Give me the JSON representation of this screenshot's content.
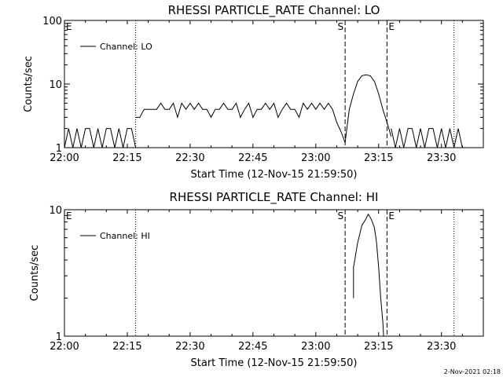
{
  "footer": {
    "timestamp": "2-Nov-2021 02:18"
  },
  "chart_data": [
    {
      "type": "line",
      "title": "RHESSI PARTICLE_RATE Channel: LO",
      "xlabel": "Start Time (12-Nov-15 21:59:50)",
      "ylabel": "Counts/sec",
      "yscale": "log",
      "xlim": [
        "22:00",
        "23:40"
      ],
      "ylim": [
        1,
        100
      ],
      "x_ticks": [
        "22:00",
        "22:15",
        "22:30",
        "22:45",
        "23:00",
        "23:15",
        "23:30"
      ],
      "y_ticks": [
        "1",
        "10",
        "100"
      ],
      "legend": {
        "entries": [
          "Channel: LO"
        ],
        "placement": "top-left"
      },
      "markers": [
        {
          "label": "E",
          "time": "22:00",
          "style": "none"
        },
        {
          "label": "",
          "time": "22:17",
          "style": "dotted"
        },
        {
          "label": "S",
          "time": "23:07",
          "style": "dashed"
        },
        {
          "label": "E",
          "time": "23:17",
          "style": "dashed"
        },
        {
          "label": "",
          "time": "23:33",
          "style": "dotted"
        }
      ],
      "series": [
        {
          "name": "Channel: LO",
          "segments": [
            [
              [
                "22:00",
                1
              ],
              [
                "22:01",
                2
              ],
              [
                "22:02",
                1
              ],
              [
                "22:03",
                2
              ],
              [
                "22:04",
                1
              ],
              [
                "22:05",
                2
              ],
              [
                "22:06",
                2
              ],
              [
                "22:07",
                1
              ],
              [
                "22:08",
                2
              ],
              [
                "22:09",
                1
              ],
              [
                "22:10",
                2
              ],
              [
                "22:11",
                2
              ],
              [
                "22:12",
                1
              ],
              [
                "22:13",
                2
              ],
              [
                "22:14",
                1
              ],
              [
                "22:15",
                2
              ],
              [
                "22:16",
                2
              ],
              [
                "22:17",
                1
              ]
            ],
            [
              [
                "22:17",
                3
              ],
              [
                "22:18",
                3
              ],
              [
                "22:19",
                4
              ],
              [
                "22:20",
                4
              ],
              [
                "22:21",
                4
              ],
              [
                "22:22",
                4
              ],
              [
                "22:23",
                5
              ],
              [
                "22:24",
                4
              ],
              [
                "22:25",
                4
              ],
              [
                "22:26",
                5
              ],
              [
                "22:27",
                3
              ],
              [
                "22:28",
                5
              ],
              [
                "22:29",
                4
              ],
              [
                "22:30",
                5
              ],
              [
                "22:31",
                4
              ],
              [
                "22:32",
                5
              ],
              [
                "22:33",
                4
              ],
              [
                "22:34",
                4
              ],
              [
                "22:35",
                3
              ],
              [
                "22:36",
                4
              ],
              [
                "22:37",
                4
              ],
              [
                "22:38",
                5
              ],
              [
                "22:39",
                4
              ],
              [
                "22:40",
                4
              ],
              [
                "22:41",
                5
              ],
              [
                "22:42",
                3
              ],
              [
                "22:43",
                4
              ],
              [
                "22:44",
                5
              ],
              [
                "22:45",
                3
              ],
              [
                "22:46",
                4
              ],
              [
                "22:47",
                4
              ],
              [
                "22:48",
                5
              ],
              [
                "22:49",
                4
              ],
              [
                "22:50",
                5
              ],
              [
                "22:51",
                3
              ],
              [
                "22:52",
                4
              ],
              [
                "22:53",
                5
              ],
              [
                "22:54",
                4
              ],
              [
                "22:55",
                4
              ],
              [
                "22:56",
                3
              ],
              [
                "22:57",
                5
              ],
              [
                "22:58",
                4
              ],
              [
                "22:59",
                5
              ],
              [
                "23:00",
                4
              ],
              [
                "23:01",
                5
              ],
              [
                "23:02",
                4
              ],
              [
                "23:03",
                5
              ],
              [
                "23:04",
                4
              ]
            ],
            [
              [
                "23:04",
                4
              ],
              [
                "23:05",
                2.5
              ],
              [
                "23:06",
                1.8
              ],
              [
                "23:07",
                1.2
              ],
              [
                "23:08",
                4
              ],
              [
                "23:09",
                7
              ],
              [
                "23:10",
                11
              ],
              [
                "23:11",
                13.5
              ],
              [
                "23:12",
                14
              ],
              [
                "23:13",
                13.5
              ],
              [
                "23:14",
                11
              ],
              [
                "23:15",
                7
              ],
              [
                "23:16",
                4
              ],
              [
                "23:17",
                2.5
              ],
              [
                "23:18",
                1.5
              ]
            ],
            [
              [
                "23:18",
                2
              ],
              [
                "23:19",
                1
              ],
              [
                "23:20",
                2
              ],
              [
                "23:21",
                1
              ],
              [
                "23:22",
                2
              ],
              [
                "23:23",
                2
              ],
              [
                "23:24",
                1
              ],
              [
                "23:25",
                2
              ],
              [
                "23:26",
                1
              ],
              [
                "23:27",
                2
              ],
              [
                "23:28",
                2
              ],
              [
                "23:29",
                1
              ],
              [
                "23:30",
                2
              ],
              [
                "23:31",
                1
              ],
              [
                "23:32",
                2
              ],
              [
                "23:33",
                1
              ],
              [
                "23:34",
                2
              ],
              [
                "23:35",
                1
              ]
            ]
          ]
        }
      ]
    },
    {
      "type": "line",
      "title": "RHESSI PARTICLE_RATE Channel: HI",
      "xlabel": "Start Time (12-Nov-15 21:59:50)",
      "ylabel": "Counts/sec",
      "yscale": "log",
      "xlim": [
        "22:00",
        "23:40"
      ],
      "ylim": [
        1,
        10
      ],
      "x_ticks": [
        "22:00",
        "22:15",
        "22:30",
        "22:45",
        "23:00",
        "23:15",
        "23:30"
      ],
      "y_ticks": [
        "1",
        "10"
      ],
      "legend": {
        "entries": [
          "Channel: HI"
        ],
        "placement": "top-left"
      },
      "markers": [
        {
          "label": "E",
          "time": "22:00",
          "style": "none"
        },
        {
          "label": "",
          "time": "22:17",
          "style": "dotted"
        },
        {
          "label": "S",
          "time": "23:07",
          "style": "dashed"
        },
        {
          "label": "E",
          "time": "23:17",
          "style": "dashed"
        },
        {
          "label": "",
          "time": "23:33",
          "style": "dotted"
        }
      ],
      "series": [
        {
          "name": "Channel: HI",
          "segments": [
            [
              [
                "23:09",
                2.0
              ],
              [
                "23:09",
                3.5
              ],
              [
                "23:10",
                5.5
              ],
              [
                "23:11",
                7.5
              ],
              [
                "23:12",
                8.5
              ],
              [
                "23:12.5",
                9.2
              ],
              [
                "23:13",
                8.7
              ],
              [
                "23:13.5",
                8.0
              ],
              [
                "23:14",
                7.2
              ],
              [
                "23:14.5",
                5.5
              ],
              [
                "23:15",
                3.5
              ],
              [
                "23:15.5",
                2.0
              ],
              [
                "23:16",
                1.3
              ],
              [
                "23:16.2",
                1.0
              ]
            ]
          ]
        }
      ]
    }
  ]
}
